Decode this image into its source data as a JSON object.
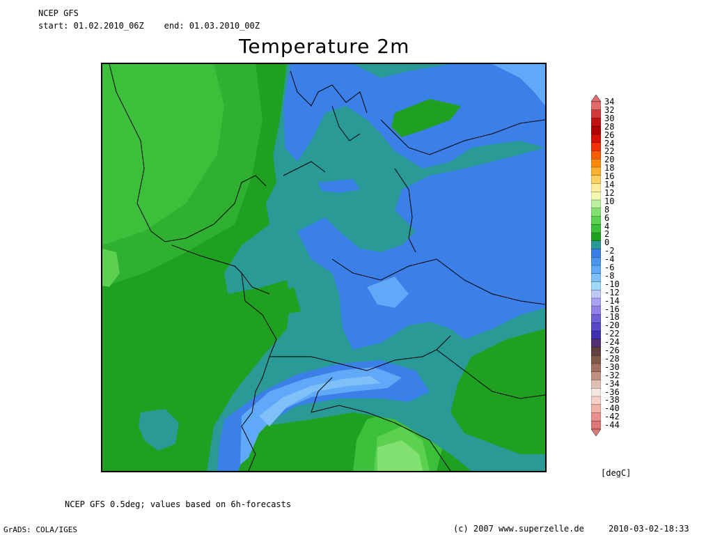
{
  "header": {
    "model": "NCEP GFS",
    "start_label": "start:",
    "start_value": "01.02.2010_06Z",
    "end_label": "end:",
    "end_value": "01.03.2010_00Z",
    "title": "Temperature 2m"
  },
  "colorbar": {
    "unit": "[degC]",
    "levels": [
      "34",
      "32",
      "30",
      "28",
      "26",
      "24",
      "22",
      "20",
      "18",
      "16",
      "14",
      "12",
      "10",
      "8",
      "6",
      "4",
      "2",
      "0",
      "-2",
      "-4",
      "-6",
      "-8",
      "-10",
      "-12",
      "-14",
      "-16",
      "-18",
      "-20",
      "-22",
      "-24",
      "-26",
      "-28",
      "-30",
      "-32",
      "-34",
      "-36",
      "-38",
      "-40",
      "-42",
      "-44"
    ],
    "colors": [
      "#e06a6a",
      "#d23a3a",
      "#c01010",
      "#b00000",
      "#d81000",
      "#f03000",
      "#ff5a00",
      "#ff8a00",
      "#ffb030",
      "#ffd060",
      "#fff0a0",
      "#f4f8b0",
      "#b8f0a0",
      "#80e070",
      "#5cd050",
      "#3cc03c",
      "#20a020",
      "#2a9a96",
      "#3a80e8",
      "#4c94f0",
      "#60a8f8",
      "#80c0f8",
      "#a0d8f8",
      "#c0c8f8",
      "#a8a0f0",
      "#9080e8",
      "#7060d8",
      "#5848c8",
      "#4030b0",
      "#503070",
      "#604040",
      "#805848",
      "#a07060",
      "#c09080",
      "#e0c0b0",
      "#f4e8e0",
      "#f8d0c8",
      "#f0b0a8",
      "#e89090",
      "#e07878"
    ]
  },
  "footer": {
    "note": "NCEP GFS 0.5deg; values based on 6h-forecasts",
    "software": "GrADS: COLA/IGES",
    "copyright": "(c) 2007 www.superzelle.de",
    "timestamp": "2010-03-02-18:33"
  }
}
